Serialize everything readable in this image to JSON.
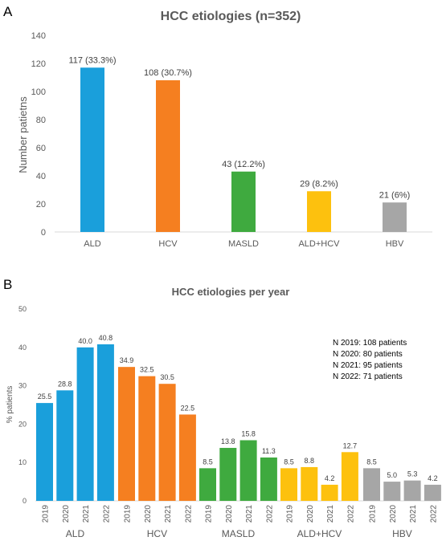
{
  "chart_data": [
    {
      "panel": "A",
      "type": "bar",
      "title": "HCC etiologies (n=352)",
      "xlabel": "",
      "ylabel": "Number patietns",
      "ylim": [
        0,
        140
      ],
      "yticks": [
        0,
        20,
        40,
        60,
        80,
        100,
        120,
        140
      ],
      "grid": false,
      "categories": [
        "ALD",
        "HCV",
        "MASLD",
        "ALD+HCV",
        "HBV"
      ],
      "values": [
        117,
        108,
        43,
        29,
        21
      ],
      "data_labels": [
        "117 (33.3%)",
        "108 (30.7%)",
        "43 (12.2%)",
        "29 (8.2%)",
        "21 (6%)"
      ],
      "colors": [
        "#1A9FDB",
        "#F57F20",
        "#3FAA3F",
        "#FDC10E",
        "#A6A6A6"
      ]
    },
    {
      "panel": "B",
      "type": "bar",
      "title": "HCC etiologies per year",
      "xlabel": "",
      "ylabel": "% patients",
      "ylim": [
        0,
        50
      ],
      "yticks": [
        0,
        10,
        20,
        30,
        40,
        50
      ],
      "grid": false,
      "groups": [
        "ALD",
        "HCV",
        "MASLD",
        "ALD+HCV",
        "HBV"
      ],
      "years": [
        "2019",
        "2020",
        "2021",
        "2022"
      ],
      "series": [
        {
          "group": "ALD",
          "values": [
            25.5,
            28.8,
            40.0,
            40.8
          ],
          "labels": [
            "25.5",
            "28.8",
            "40.0",
            "40.8"
          ]
        },
        {
          "group": "HCV",
          "values": [
            34.9,
            32.5,
            30.5,
            22.5
          ],
          "labels": [
            "34.9",
            "32.5",
            "30.5",
            "22.5"
          ]
        },
        {
          "group": "MASLD",
          "values": [
            8.5,
            13.8,
            15.8,
            11.3
          ],
          "labels": [
            "8.5",
            "13.8",
            "15.8",
            "11.3"
          ]
        },
        {
          "group": "ALD+HCV",
          "values": [
            8.5,
            8.8,
            4.2,
            12.7
          ],
          "labels": [
            "8.5",
            "8.8",
            "4.2",
            "12.7"
          ]
        },
        {
          "group": "HBV",
          "values": [
            8.5,
            5.0,
            5.3,
            4.2
          ],
          "labels": [
            "8.5",
            "5.0",
            "5.3",
            "4.2"
          ]
        }
      ],
      "colors": [
        "#1A9FDB",
        "#F57F20",
        "#3FAA3F",
        "#FDC10E",
        "#A6A6A6"
      ],
      "annotations": [
        "N 2019: 108 patients",
        "N 2020: 80 patients",
        "N 2021: 95 patients",
        "N 2022: 71 patients"
      ],
      "annotation_placement": "top-right"
    }
  ]
}
